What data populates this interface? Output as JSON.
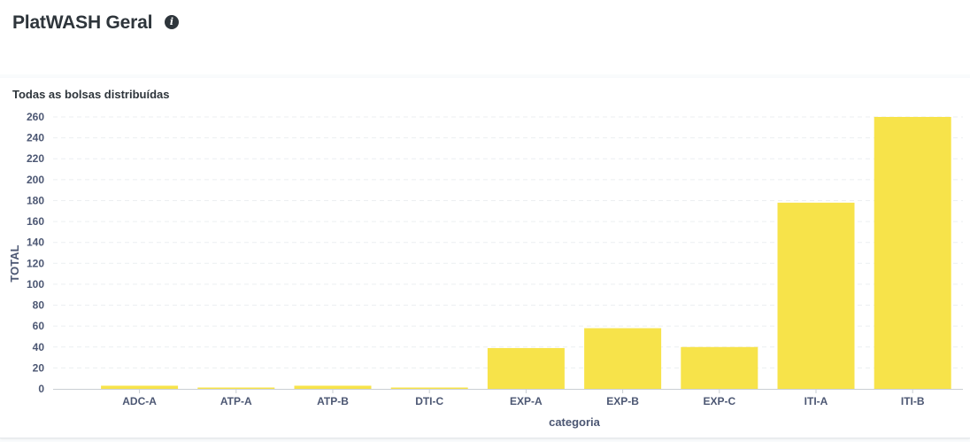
{
  "dashboard": {
    "title": "PlatWASH Geral",
    "info_icon": "info-circle-icon"
  },
  "card": {
    "title": "Todas as bolsas distribuídas"
  },
  "chart_data": {
    "type": "bar",
    "categories": [
      "ADC-A",
      "ATP-A",
      "ATP-B",
      "DTI-C",
      "EXP-A",
      "EXP-B",
      "EXP-C",
      "ITI-A",
      "ITI-B"
    ],
    "values": [
      3,
      1,
      3,
      0.5,
      39,
      58,
      40,
      178,
      260
    ],
    "xlabel": "categoria",
    "ylabel": "TOTAL",
    "ylim": [
      0,
      260
    ],
    "yticks": [
      0,
      20,
      40,
      60,
      80,
      100,
      120,
      140,
      160,
      180,
      200,
      220,
      240,
      260
    ],
    "grid": true,
    "bar_color": "#f7e34a",
    "legend": "none"
  }
}
